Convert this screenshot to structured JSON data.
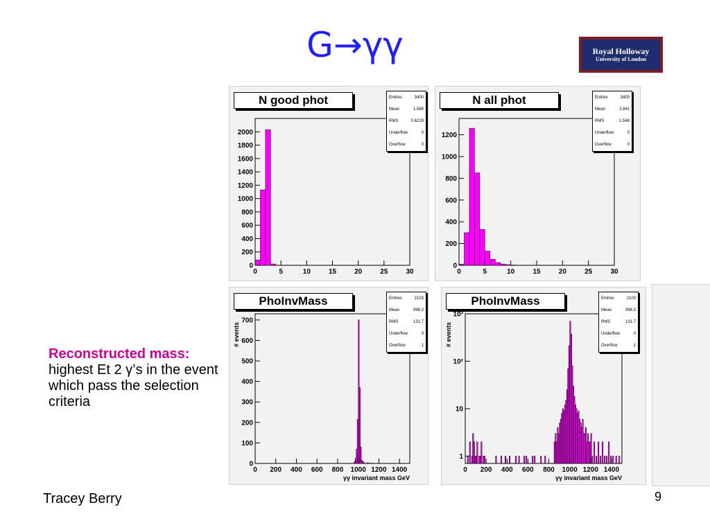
{
  "slide": {
    "title": "G→γγ",
    "logo_line1": "Royal Holloway",
    "logo_line2": "University of London",
    "caption_highlight": "Reconstructed mass:",
    "caption_body": "highest Et 2 γ’s in the event which pass the selection criteria",
    "footer_author": "Tracey Berry",
    "page_number": "9"
  },
  "chart_data": [
    {
      "type": "bar",
      "title": "N good phot",
      "xlabel": "",
      "ylabel": "",
      "xlim": [
        0,
        30
      ],
      "ylim": [
        0,
        2200
      ],
      "x_ticks": [
        0,
        5,
        10,
        15,
        20,
        25,
        30
      ],
      "y_ticks": [
        0,
        200,
        400,
        600,
        800,
        1000,
        1200,
        1400,
        1600,
        1800,
        2000
      ],
      "bin_width": 1,
      "bins": [
        [
          0,
          80
        ],
        [
          1,
          1130
        ],
        [
          2,
          2030
        ],
        [
          3,
          20
        ]
      ],
      "stats": {
        "Entries": "3400",
        "Mean": "1.589",
        "RMS": "0.6229",
        "Underflow": "0",
        "Overflow": "0"
      }
    },
    {
      "type": "bar",
      "title": "N all phot",
      "xlabel": "",
      "ylabel": "",
      "xlim": [
        0,
        30
      ],
      "ylim": [
        0,
        1350
      ],
      "x_ticks": [
        0,
        5,
        10,
        15,
        20,
        25,
        30
      ],
      "y_ticks": [
        0,
        200,
        400,
        600,
        800,
        1000,
        1200
      ],
      "bin_width": 1,
      "bins": [
        [
          0,
          10
        ],
        [
          1,
          300
        ],
        [
          2,
          1260
        ],
        [
          3,
          850
        ],
        [
          4,
          330
        ],
        [
          5,
          130
        ],
        [
          6,
          55
        ],
        [
          7,
          25
        ],
        [
          8,
          12
        ],
        [
          9,
          6
        ],
        [
          10,
          3
        ]
      ],
      "stats": {
        "Entries": "3400",
        "Mean": "2.841",
        "RMS": "1.548",
        "Underflow": "0",
        "Overflow": "0"
      }
    },
    {
      "type": "bar",
      "title": "PhoInvMass",
      "xlabel": "γγ invariant mass GeV",
      "ylabel": "# events",
      "log_y": false,
      "xlim": [
        0,
        1500
      ],
      "ylim": [
        0,
        730
      ],
      "x_ticks": [
        0,
        200,
        400,
        600,
        800,
        1000,
        1200,
        1400
      ],
      "y_ticks": [
        0,
        100,
        200,
        300,
        400,
        500,
        600,
        700
      ],
      "bin_width": 10,
      "bins": [
        [
          960,
          10
        ],
        [
          970,
          25
        ],
        [
          980,
          70
        ],
        [
          990,
          215
        ],
        [
          1000,
          700
        ],
        [
          1010,
          370
        ],
        [
          1020,
          80
        ],
        [
          1030,
          15
        ],
        [
          1040,
          10
        ],
        [
          1050,
          5
        ],
        [
          1080,
          3
        ],
        [
          1100,
          3
        ],
        [
          1130,
          2
        ]
      ],
      "stats": {
        "Entries": "2103",
        "Mean": "996.3",
        "RMS": "131.7",
        "Underflow": "0",
        "Overflow": "1"
      }
    },
    {
      "type": "bar",
      "title": "PhoInvMass",
      "xlabel": "γγ invariant mass GeV",
      "ylabel": "# events",
      "log_y": true,
      "xlim": [
        0,
        1500
      ],
      "ylim": [
        0.7,
        1000
      ],
      "x_ticks": [
        0,
        200,
        400,
        600,
        800,
        1000,
        1200,
        1400
      ],
      "y_ticks": [
        1,
        10,
        100,
        1000
      ],
      "y_tick_labels": [
        "1",
        "10",
        "10²",
        "10³"
      ],
      "bin_width": 10,
      "bins": [
        [
          20,
          1
        ],
        [
          40,
          2
        ],
        [
          60,
          1
        ],
        [
          70,
          3
        ],
        [
          80,
          2
        ],
        [
          90,
          1
        ],
        [
          100,
          1
        ],
        [
          110,
          2
        ],
        [
          130,
          1
        ],
        [
          140,
          1
        ],
        [
          150,
          2
        ],
        [
          170,
          1
        ],
        [
          180,
          1
        ],
        [
          290,
          1
        ],
        [
          340,
          1
        ],
        [
          380,
          1
        ],
        [
          420,
          1
        ],
        [
          480,
          1
        ],
        [
          510,
          1
        ],
        [
          560,
          1
        ],
        [
          580,
          1
        ],
        [
          640,
          1
        ],
        [
          660,
          1
        ],
        [
          720,
          1
        ],
        [
          760,
          1
        ],
        [
          850,
          2
        ],
        [
          860,
          3
        ],
        [
          870,
          2
        ],
        [
          880,
          4
        ],
        [
          890,
          3
        ],
        [
          900,
          5
        ],
        [
          910,
          6
        ],
        [
          920,
          8
        ],
        [
          930,
          10
        ],
        [
          940,
          9
        ],
        [
          950,
          12
        ],
        [
          960,
          15
        ],
        [
          970,
          25
        ],
        [
          980,
          70
        ],
        [
          990,
          210
        ],
        [
          1000,
          700
        ],
        [
          1010,
          370
        ],
        [
          1020,
          80
        ],
        [
          1030,
          30
        ],
        [
          1040,
          18
        ],
        [
          1050,
          12
        ],
        [
          1060,
          10
        ],
        [
          1070,
          8
        ],
        [
          1080,
          9
        ],
        [
          1090,
          6
        ],
        [
          1100,
          5
        ],
        [
          1110,
          4
        ],
        [
          1120,
          6
        ],
        [
          1130,
          3
        ],
        [
          1140,
          3
        ],
        [
          1150,
          4
        ],
        [
          1160,
          2
        ],
        [
          1170,
          3
        ],
        [
          1180,
          2
        ],
        [
          1190,
          2
        ],
        [
          1200,
          3
        ],
        [
          1210,
          1
        ],
        [
          1230,
          2
        ],
        [
          1250,
          1
        ],
        [
          1270,
          2
        ],
        [
          1290,
          1
        ],
        [
          1310,
          2
        ],
        [
          1330,
          1
        ],
        [
          1350,
          1
        ],
        [
          1370,
          2
        ],
        [
          1390,
          1
        ],
        [
          1410,
          1
        ],
        [
          1440,
          1
        ],
        [
          1470,
          1
        ]
      ],
      "stats": {
        "Entries": "2103",
        "Mean": "996.3",
        "RMS": "131.7",
        "Underflow": "0",
        "Overflow": "1"
      }
    }
  ],
  "colors": {
    "histogram_fill": "#ff00ff",
    "histogram_edge": "#000000",
    "title_blue": "#1f1fff",
    "highlight_magenta": "#cc0099",
    "logo_navy": "#1f2c6e",
    "logo_border": "#7a1f24"
  }
}
